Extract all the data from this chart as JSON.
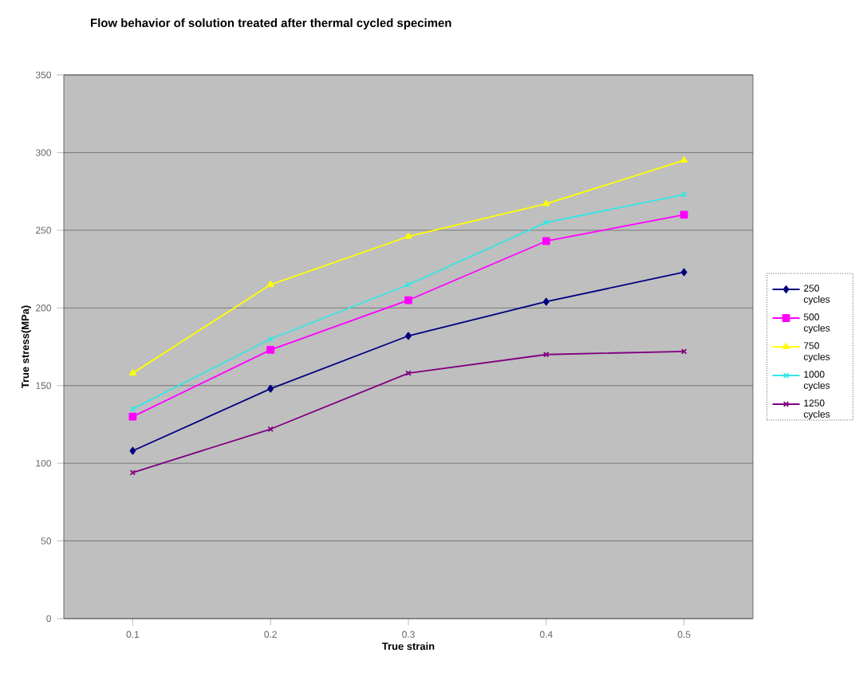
{
  "chart_data": {
    "type": "line",
    "title": "Flow behavior of solution treated after thermal cycled specimen",
    "xlabel": "True strain",
    "ylabel": "True stress(MPa)",
    "categories": [
      "0.1",
      "0.2",
      "0.3",
      "0.4",
      "0.5"
    ],
    "series": [
      {
        "name": "250 cycles",
        "color": "#000080",
        "marker": "diamond",
        "values": [
          108,
          148,
          182,
          204,
          223
        ]
      },
      {
        "name": "500 cycles",
        "color": "#ff00ff",
        "marker": "square",
        "values": [
          130,
          173,
          205,
          243,
          260
        ]
      },
      {
        "name": "750 cycles",
        "color": "#ffff00",
        "marker": "triangle",
        "values": [
          158,
          215,
          246,
          267,
          295
        ]
      },
      {
        "name": "1000 cycles",
        "color": "#33e6e6",
        "marker": "cross",
        "values": [
          135,
          180,
          215,
          255,
          273
        ]
      },
      {
        "name": "1250 cycles",
        "color": "#800080",
        "marker": "cross",
        "values": [
          94,
          122,
          158,
          170,
          172
        ]
      }
    ],
    "ylim": [
      0,
      350
    ],
    "yticks": [
      0,
      50,
      100,
      150,
      200,
      250,
      300,
      350
    ],
    "grid": "y",
    "legend": "right"
  }
}
